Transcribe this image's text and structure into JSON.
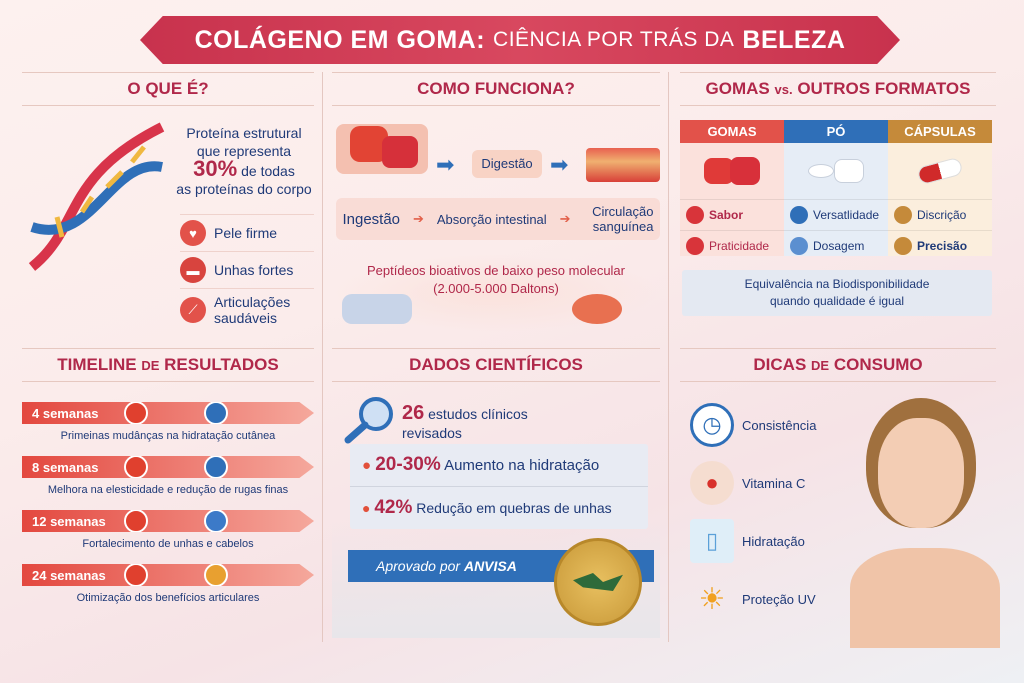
{
  "title": {
    "part1": "COLÁGENO EM GOMA:",
    "part2": "CIÊNCIA POR TRÁS DA",
    "part3": "BELEZA"
  },
  "o_que_e": {
    "title": "O QUE É?",
    "desc_line1": "Proteína estrutural",
    "desc_line2": "que representa",
    "percent": "30%",
    "desc_line3": "de todas",
    "desc_line4": "as proteínas do corpo",
    "benefits": [
      {
        "label": "Pele firme",
        "icon": "heart-icon"
      },
      {
        "label": "Unhas fortes",
        "icon": "nail-icon"
      },
      {
        "label": "Articulações saudáveis",
        "icon": "joint-icon"
      }
    ]
  },
  "como_funciona": {
    "title": "COMO FUNCIONA?",
    "digestion": "Digestão",
    "steps": [
      "Ingestão",
      "Absorção intestinal",
      "Circulação sanguínea"
    ],
    "peptides_line1": "Peptídeos bioativos de baixo peso molecular",
    "peptides_line2": "(2.000-5.000 Daltons)"
  },
  "comparativo": {
    "title": "GOMAS",
    "title_vs": "vs.",
    "title_rest": "OUTROS FORMATOS",
    "columns": [
      {
        "name": "GOMAS",
        "color": "#e2524a",
        "bg": "#fbe1dc",
        "items": [
          "Sabor",
          "Praticidade"
        ]
      },
      {
        "name": "PÓ",
        "color": "#2f6fb8",
        "bg": "#e6edf6",
        "items": [
          "Versatlidade",
          "Dosagem"
        ]
      },
      {
        "name": "CÁPSULAS",
        "color": "#c58a3a",
        "bg": "#fbeedd",
        "items": [
          "Discrição",
          "Precisão"
        ]
      }
    ],
    "note_line1": "Equivalência na Biodisponibilidade",
    "note_line2": "quando qualidade é igual"
  },
  "timeline": {
    "title": "TIMELINE",
    "title_small": "DE",
    "title_rest": "RESULTADOS",
    "items": [
      {
        "label": "4 semanas",
        "desc": "Primeinas mudânças na hidratação cutânea"
      },
      {
        "label": "8 semanas",
        "desc": "Melhora na elesticidade e redução de rugas finas"
      },
      {
        "label": "12 semanas",
        "desc": "Fortalecimento de unhas e cabelos"
      },
      {
        "label": "24 semanas",
        "desc": "Otimização dos benefícios articulares"
      }
    ]
  },
  "dados": {
    "title": "DADOS CIENTÍFICOS",
    "studies_num": "26",
    "studies_text": "estudos clínicos revisados",
    "stats": [
      {
        "value": "20-30%",
        "text": "Aumento na hidratação"
      },
      {
        "value": "42%",
        "text": "Redução em quebras de unhas"
      }
    ],
    "approved_prefix": "Aprovado por",
    "approved_org": "ANVISA"
  },
  "dicas": {
    "title": "DICAS",
    "title_small": "DE",
    "title_rest": "CONSUMO",
    "items": [
      {
        "label": "Consistência",
        "icon": "clock-icon"
      },
      {
        "label": "Vitamina C",
        "icon": "fruit-icon"
      },
      {
        "label": "Hidratação",
        "icon": "water-glass-icon"
      },
      {
        "label": "Proteção UV",
        "icon": "sun-icon"
      }
    ]
  }
}
